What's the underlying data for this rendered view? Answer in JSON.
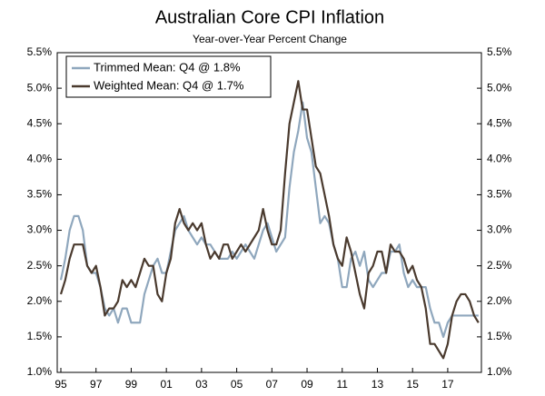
{
  "chart_data": {
    "type": "line",
    "title": "Australian Core CPI Inflation",
    "subtitle": "Year-over-Year Percent Change",
    "categories": [
      "95",
      null,
      null,
      null,
      null,
      null,
      null,
      null,
      "97",
      null,
      null,
      null,
      null,
      null,
      null,
      null,
      "99",
      null,
      null,
      null,
      null,
      null,
      null,
      null,
      "01",
      null,
      null,
      null,
      null,
      null,
      null,
      null,
      "03",
      null,
      null,
      null,
      null,
      null,
      null,
      null,
      "05",
      null,
      null,
      null,
      null,
      null,
      null,
      null,
      "07",
      null,
      null,
      null,
      null,
      null,
      null,
      null,
      "09",
      null,
      null,
      null,
      null,
      null,
      null,
      null,
      "11",
      null,
      null,
      null,
      null,
      null,
      null,
      null,
      "13",
      null,
      null,
      null,
      null,
      null,
      null,
      null,
      "15",
      null,
      null,
      null,
      null,
      null,
      null,
      null,
      "17",
      null,
      null,
      null,
      null,
      null,
      null,
      null
    ],
    "series": [
      {
        "name": "Trimmed Mean: Q4 @ 1.8%",
        "color": "#8fa7bd",
        "values": [
          2.3,
          2.6,
          3.0,
          3.2,
          3.2,
          3.0,
          2.5,
          2.4,
          2.4,
          2.2,
          1.9,
          1.8,
          1.9,
          1.7,
          1.9,
          1.9,
          1.7,
          1.7,
          1.7,
          2.1,
          2.3,
          2.5,
          2.6,
          2.4,
          2.4,
          2.7,
          3.0,
          3.1,
          3.2,
          3.0,
          2.9,
          2.8,
          2.9,
          2.8,
          2.8,
          2.7,
          2.6,
          2.6,
          2.6,
          2.7,
          2.6,
          2.7,
          2.8,
          2.7,
          2.6,
          2.8,
          3.0,
          3.1,
          2.9,
          2.7,
          2.8,
          2.9,
          3.6,
          4.1,
          4.4,
          4.8,
          4.3,
          4.1,
          3.6,
          3.1,
          3.2,
          3.1,
          2.8,
          2.6,
          2.2,
          2.2,
          2.6,
          2.7,
          2.5,
          2.7,
          2.3,
          2.2,
          2.3,
          2.4,
          2.4,
          2.7,
          2.7,
          2.8,
          2.4,
          2.2,
          2.3,
          2.2,
          2.2,
          2.2,
          1.9,
          1.7,
          1.7,
          1.5,
          1.7,
          1.8,
          1.8,
          1.8,
          1.8,
          1.8,
          1.8,
          1.8
        ]
      },
      {
        "name": "Weighted Mean: Q4 @ 1.7%",
        "color": "#4a3a2e",
        "values": [
          2.1,
          2.3,
          2.6,
          2.8,
          2.8,
          2.8,
          2.5,
          2.4,
          2.5,
          2.2,
          1.8,
          1.9,
          1.9,
          2.0,
          2.3,
          2.2,
          2.3,
          2.2,
          2.4,
          2.6,
          2.5,
          2.5,
          2.1,
          2.0,
          2.4,
          2.6,
          3.1,
          3.3,
          3.1,
          3.0,
          3.1,
          3.0,
          3.1,
          2.8,
          2.6,
          2.7,
          2.6,
          2.8,
          2.8,
          2.6,
          2.7,
          2.8,
          2.7,
          2.8,
          2.9,
          3.0,
          3.3,
          3.0,
          2.8,
          2.8,
          3.0,
          3.8,
          4.5,
          4.8,
          5.1,
          4.7,
          4.7,
          4.3,
          3.9,
          3.8,
          3.5,
          3.2,
          2.8,
          2.6,
          2.5,
          2.9,
          2.7,
          2.4,
          2.1,
          1.9,
          2.4,
          2.5,
          2.7,
          2.7,
          2.4,
          2.8,
          2.7,
          2.7,
          2.6,
          2.4,
          2.5,
          2.3,
          2.2,
          1.9,
          1.4,
          1.4,
          1.3,
          1.2,
          1.4,
          1.8,
          2.0,
          2.1,
          2.1,
          2.0,
          1.8,
          1.7
        ]
      }
    ],
    "ylim": [
      1.0,
      5.5
    ],
    "yticks": [
      {
        "value": 1.0,
        "label": "1.0%"
      },
      {
        "value": 1.5,
        "label": "1.5%"
      },
      {
        "value": 2.0,
        "label": "2.0%"
      },
      {
        "value": 2.5,
        "label": "2.5%"
      },
      {
        "value": 3.0,
        "label": "3.0%"
      },
      {
        "value": 3.5,
        "label": "3.5%"
      },
      {
        "value": 4.0,
        "label": "4.0%"
      },
      {
        "value": 4.5,
        "label": "4.5%"
      },
      {
        "value": 5.0,
        "label": "5.0%"
      },
      {
        "value": 5.5,
        "label": "5.5%"
      }
    ],
    "legend": "upper left"
  }
}
